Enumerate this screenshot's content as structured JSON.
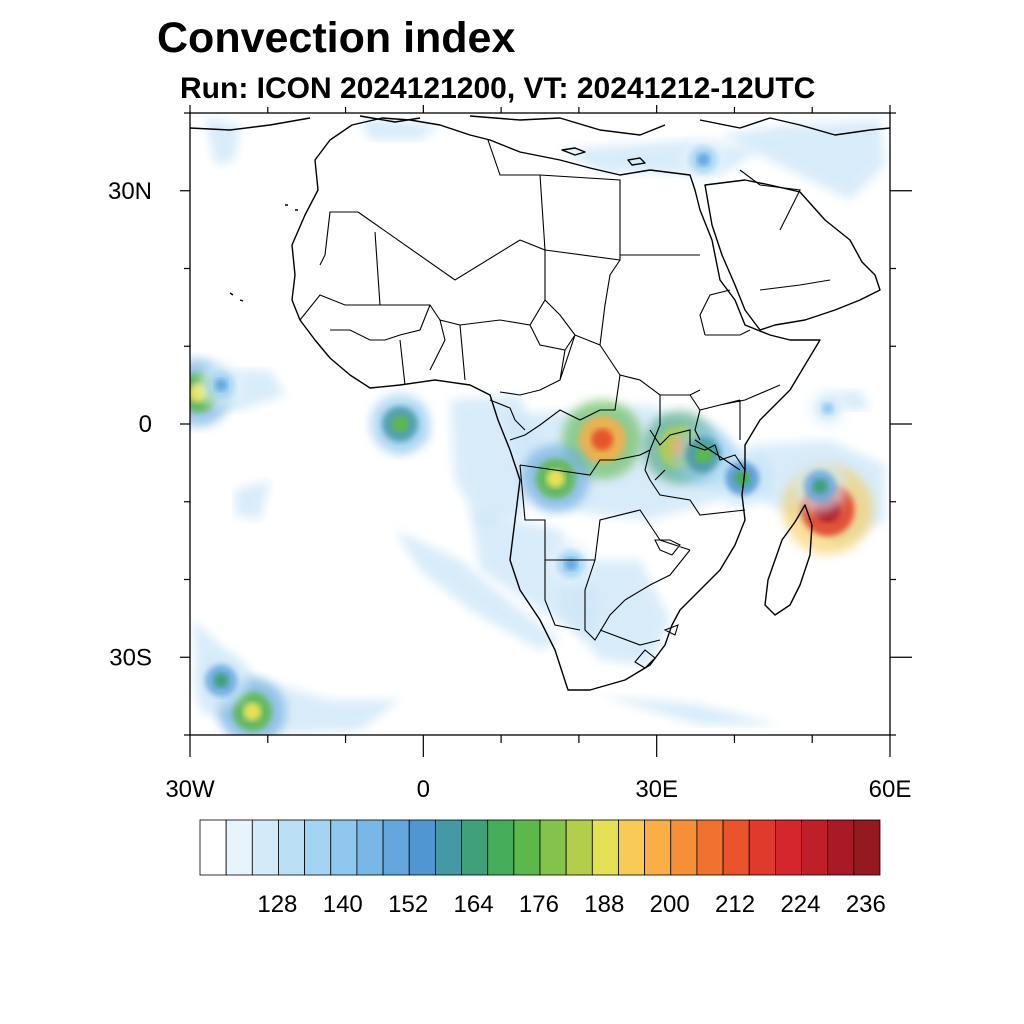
{
  "title": "Convection index",
  "subtitle": "Run: ICON 2024121200,  VT: 20241212-12UTC",
  "map": {
    "extent": {
      "lon_min": -30,
      "lon_max": 60,
      "lat_min": -40,
      "lat_max": 40
    },
    "lat_ticks": [
      {
        "value": 30,
        "label": "30N"
      },
      {
        "value": 0,
        "label": "0"
      },
      {
        "value": -30,
        "label": "30S"
      }
    ],
    "lon_ticks": [
      {
        "value": -30,
        "label": "30W"
      },
      {
        "value": 0,
        "label": "0"
      },
      {
        "value": 30,
        "label": "30E"
      },
      {
        "value": 60,
        "label": "60E"
      }
    ],
    "minor_lat_ticks": [
      40,
      20,
      10,
      -10,
      -20,
      -40
    ],
    "minor_lon_ticks": [
      -20,
      -10,
      10,
      20,
      40,
      50
    ]
  },
  "colorbar": {
    "colors": [
      "#ffffff",
      "#e8f4fc",
      "#d2eaf9",
      "#bbe0f6",
      "#a3d5f3",
      "#8ec8ee",
      "#79b8e6",
      "#64a7de",
      "#5096d1",
      "#4499a4",
      "#40a077",
      "#44ad5a",
      "#5db84b",
      "#84c34a",
      "#b2cf4c",
      "#e5e156",
      "#f7cb55",
      "#f9ae46",
      "#f69038",
      "#f17131",
      "#e9532c",
      "#e03a2c",
      "#d4262c",
      "#c01e2b",
      "#aa1a26",
      "#951a1f"
    ],
    "tick_labels": [
      "128",
      "140",
      "152",
      "164",
      "176",
      "188",
      "200",
      "212",
      "224",
      "236"
    ]
  },
  "chart_data": {
    "type": "heatmap",
    "title": "Convection index",
    "subtitle": "Run: ICON 2024121200,  VT: 20241212-12UTC",
    "colorbar_levels": [
      128,
      140,
      152,
      164,
      176,
      188,
      200,
      212,
      224,
      236
    ],
    "features": [
      {
        "lon": -29,
        "lat": 4,
        "value": 190
      },
      {
        "lon": -26,
        "lat": 5,
        "value": 150
      },
      {
        "lon": -3,
        "lat": 0,
        "value": 176
      },
      {
        "lon": 23,
        "lat": -2,
        "value": 212
      },
      {
        "lon": 17,
        "lat": -7,
        "value": 190
      },
      {
        "lon": 33,
        "lat": -3,
        "value": 200
      },
      {
        "lon": 36,
        "lat": -4,
        "value": 176
      },
      {
        "lon": 41,
        "lat": -7,
        "value": 170
      },
      {
        "lon": 52,
        "lat": -11,
        "value": 232
      },
      {
        "lon": 51,
        "lat": -8,
        "value": 164
      },
      {
        "lon": -22,
        "lat": -37,
        "value": 188
      },
      {
        "lon": -26,
        "lat": -33,
        "value": 164
      },
      {
        "lon": 19,
        "lat": -18,
        "value": 152
      },
      {
        "lon": 36,
        "lat": 34,
        "value": 152
      },
      {
        "lon": 52,
        "lat": 2,
        "value": 140
      }
    ]
  }
}
